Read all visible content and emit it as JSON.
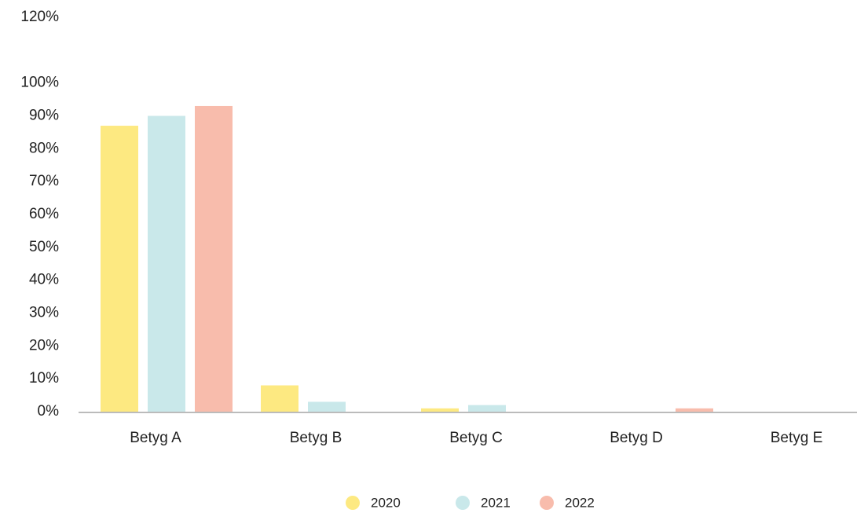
{
  "chart_data": {
    "type": "bar",
    "categories": [
      "Betyg A",
      "Betyg B",
      "Betyg C",
      "Betyg D",
      "Betyg E"
    ],
    "series": [
      {
        "name": "2020",
        "color": "#fde981",
        "values": [
          87,
          8,
          1,
          null,
          null
        ]
      },
      {
        "name": "2021",
        "color": "#c9e8ea",
        "values": [
          90,
          3,
          2,
          null,
          null
        ]
      },
      {
        "name": "2022",
        "color": "#f8bcac",
        "values": [
          93,
          null,
          null,
          1,
          null
        ]
      }
    ],
    "ylim": [
      0,
      120
    ],
    "yticks": [
      {
        "value": 0,
        "label": "0%"
      },
      {
        "value": 10,
        "label": "10%"
      },
      {
        "value": 20,
        "label": "20%"
      },
      {
        "value": 30,
        "label": "30%"
      },
      {
        "value": 40,
        "label": "40%"
      },
      {
        "value": 50,
        "label": "50%"
      },
      {
        "value": 60,
        "label": "60%"
      },
      {
        "value": 70,
        "label": "70%"
      },
      {
        "value": 80,
        "label": "80%"
      },
      {
        "value": 90,
        "label": "90%"
      },
      {
        "value": 100,
        "label": "100%"
      },
      {
        "value": 120,
        "label": "120%"
      }
    ],
    "grid": false,
    "legend": "bottom"
  }
}
